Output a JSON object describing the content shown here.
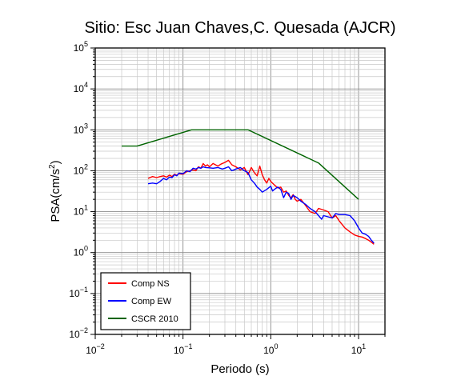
{
  "chart_data": {
    "type": "line",
    "title": "Sitio: Esc Juan Chaves,C. Quesada (AJCR)",
    "xlabel": "Periodo (s)",
    "ylabel_base": "PSA(cm/s",
    "ylabel_sup": "2",
    "ylabel_end": ")",
    "xscale": "log",
    "yscale": "log",
    "xlim": [
      0.01,
      20
    ],
    "ylim": [
      0.01,
      100000
    ],
    "grid": true,
    "legend_position": "bottom-left",
    "x_ticks": [
      {
        "base": "10",
        "exp": "−2",
        "value": 0.01
      },
      {
        "base": "10",
        "exp": "−1",
        "value": 0.1
      },
      {
        "base": "10",
        "exp": "0",
        "value": 1
      },
      {
        "base": "10",
        "exp": "1",
        "value": 10
      }
    ],
    "y_ticks": [
      {
        "base": "10",
        "exp": "−2",
        "value": 0.01
      },
      {
        "base": "10",
        "exp": "−1",
        "value": 0.1
      },
      {
        "base": "10",
        "exp": "0",
        "value": 1
      },
      {
        "base": "10",
        "exp": "1",
        "value": 10
      },
      {
        "base": "10",
        "exp": "2",
        "value": 100
      },
      {
        "base": "10",
        "exp": "3",
        "value": 1000
      },
      {
        "base": "10",
        "exp": "4",
        "value": 10000
      },
      {
        "base": "10",
        "exp": "5",
        "value": 100000
      }
    ],
    "series": [
      {
        "name": "Comp NS",
        "color": "#ff0000",
        "points": [
          [
            0.04,
            65
          ],
          [
            0.045,
            72
          ],
          [
            0.05,
            68
          ],
          [
            0.055,
            72
          ],
          [
            0.06,
            75
          ],
          [
            0.065,
            70
          ],
          [
            0.07,
            78
          ],
          [
            0.075,
            72
          ],
          [
            0.08,
            82
          ],
          [
            0.085,
            78
          ],
          [
            0.09,
            85
          ],
          [
            0.1,
            82
          ],
          [
            0.11,
            95
          ],
          [
            0.12,
            100
          ],
          [
            0.13,
            105
          ],
          [
            0.14,
            100
          ],
          [
            0.15,
            125
          ],
          [
            0.16,
            115
          ],
          [
            0.17,
            150
          ],
          [
            0.18,
            130
          ],
          [
            0.19,
            140
          ],
          [
            0.2,
            125
          ],
          [
            0.22,
            150
          ],
          [
            0.25,
            130
          ],
          [
            0.27,
            145
          ],
          [
            0.3,
            160
          ],
          [
            0.33,
            180
          ],
          [
            0.36,
            140
          ],
          [
            0.4,
            125
          ],
          [
            0.45,
            105
          ],
          [
            0.5,
            120
          ],
          [
            0.55,
            80
          ],
          [
            0.6,
            120
          ],
          [
            0.65,
            90
          ],
          [
            0.7,
            75
          ],
          [
            0.75,
            130
          ],
          [
            0.8,
            80
          ],
          [
            0.85,
            60
          ],
          [
            0.9,
            50
          ],
          [
            0.95,
            65
          ],
          [
            1.0,
            55
          ],
          [
            1.1,
            45
          ],
          [
            1.2,
            38
          ],
          [
            1.3,
            40
          ],
          [
            1.4,
            30
          ],
          [
            1.5,
            32
          ],
          [
            1.6,
            25
          ],
          [
            1.7,
            22
          ],
          [
            1.8,
            26
          ],
          [
            1.9,
            20
          ],
          [
            2.0,
            18
          ],
          [
            2.2,
            20
          ],
          [
            2.5,
            14
          ],
          [
            2.8,
            10
          ],
          [
            3.2,
            9
          ],
          [
            3.5,
            12
          ],
          [
            4.0,
            11
          ],
          [
            4.5,
            10
          ],
          [
            5.0,
            7
          ],
          [
            5.5,
            8
          ],
          [
            6.0,
            6
          ],
          [
            7.0,
            4
          ],
          [
            8.0,
            3.2
          ],
          [
            9.0,
            2.7
          ],
          [
            10.0,
            2.5
          ],
          [
            11.0,
            2.4
          ],
          [
            12.0,
            2.2
          ],
          [
            13.0,
            2.0
          ],
          [
            14.0,
            1.8
          ],
          [
            15.0,
            1.6
          ]
        ]
      },
      {
        "name": "Comp EW",
        "color": "#0000ff",
        "points": [
          [
            0.04,
            48
          ],
          [
            0.045,
            50
          ],
          [
            0.05,
            48
          ],
          [
            0.055,
            55
          ],
          [
            0.06,
            65
          ],
          [
            0.065,
            60
          ],
          [
            0.07,
            70
          ],
          [
            0.075,
            68
          ],
          [
            0.08,
            80
          ],
          [
            0.085,
            75
          ],
          [
            0.09,
            88
          ],
          [
            0.1,
            85
          ],
          [
            0.11,
            100
          ],
          [
            0.12,
            95
          ],
          [
            0.13,
            115
          ],
          [
            0.14,
            110
          ],
          [
            0.15,
            120
          ],
          [
            0.16,
            115
          ],
          [
            0.17,
            125
          ],
          [
            0.18,
            120
          ],
          [
            0.2,
            118
          ],
          [
            0.22,
            115
          ],
          [
            0.25,
            120
          ],
          [
            0.28,
            110
          ],
          [
            0.3,
            115
          ],
          [
            0.33,
            125
          ],
          [
            0.36,
            100
          ],
          [
            0.4,
            110
          ],
          [
            0.45,
            120
          ],
          [
            0.5,
            100
          ],
          [
            0.55,
            90
          ],
          [
            0.6,
            60
          ],
          [
            0.65,
            50
          ],
          [
            0.7,
            40
          ],
          [
            0.75,
            35
          ],
          [
            0.8,
            30
          ],
          [
            0.9,
            35
          ],
          [
            1.0,
            42
          ],
          [
            1.05,
            32
          ],
          [
            1.1,
            35
          ],
          [
            1.2,
            40
          ],
          [
            1.3,
            35
          ],
          [
            1.4,
            22
          ],
          [
            1.5,
            30
          ],
          [
            1.6,
            28
          ],
          [
            1.7,
            20
          ],
          [
            1.8,
            25
          ],
          [
            2.0,
            22
          ],
          [
            2.2,
            18
          ],
          [
            2.5,
            15
          ],
          [
            2.8,
            12
          ],
          [
            3.2,
            10
          ],
          [
            3.5,
            8
          ],
          [
            3.8,
            6.5
          ],
          [
            4.0,
            8
          ],
          [
            4.5,
            7.5
          ],
          [
            5.0,
            7
          ],
          [
            5.5,
            9
          ],
          [
            6.0,
            8.5
          ],
          [
            7.0,
            8.5
          ],
          [
            8.0,
            8
          ],
          [
            9.0,
            6
          ],
          [
            10.0,
            4
          ],
          [
            11.0,
            3
          ],
          [
            12.0,
            2.8
          ],
          [
            13.0,
            2.5
          ],
          [
            14.0,
            2.0
          ],
          [
            15.0,
            1.7
          ]
        ]
      },
      {
        "name": "CSCR 2010",
        "color": "#006400",
        "points": [
          [
            0.02,
            400
          ],
          [
            0.03,
            400
          ],
          [
            0.125,
            1000
          ],
          [
            0.55,
            1000
          ],
          [
            3.5,
            155
          ],
          [
            10.0,
            20
          ]
        ]
      }
    ]
  }
}
